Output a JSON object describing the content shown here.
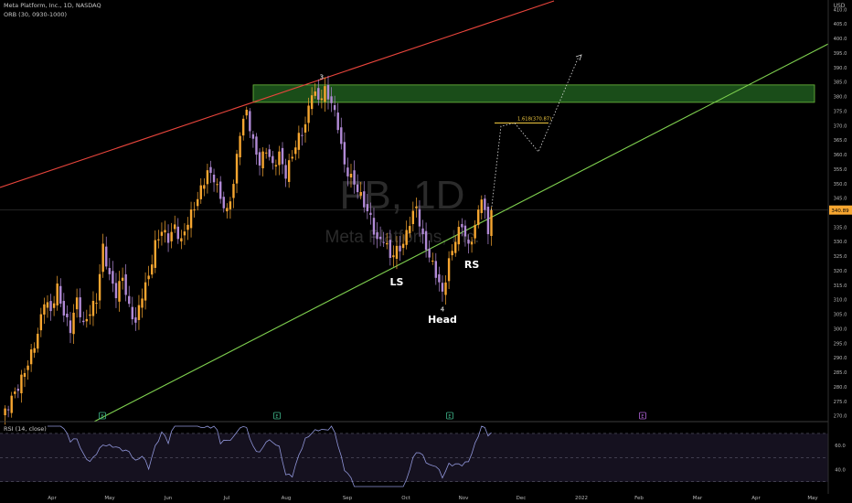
{
  "header": {
    "symbol_line": "Meta Platform, Inc., 1D, NASDAQ",
    "indicator_line": "ORB (30, 0930-1000)",
    "currency": "USD"
  },
  "watermark": {
    "ticker": "FB, 1D",
    "name": "Meta Platforms, Inc."
  },
  "colors": {
    "background": "#000000",
    "candle_up": "#f7a630",
    "candle_down": "#b18ad6",
    "resistance_line": "#e8453c",
    "support_line": "#7fd14f",
    "zone_fill": "#1f5a1d",
    "zone_stroke": "#6fbf3f",
    "projection": "#f0c840",
    "rsi_line": "#8f95d8",
    "axis_text": "#b8b8b8",
    "price_tag": "#f7a630"
  },
  "chart_data": [
    {
      "type": "candlestick",
      "title": "Meta Platform, Inc., 1D, NASDAQ",
      "ylabel": "USD",
      "ylim": [
        268,
        412
      ],
      "x_ticks": [
        "Apr",
        "May",
        "Jun",
        "Jul",
        "Aug",
        "Sep",
        "Oct",
        "Nov",
        "Dec",
        "2022",
        "Feb",
        "Mar",
        "Apr",
        "May"
      ],
      "y_ticks": [
        270,
        275,
        280,
        285,
        290,
        295,
        300,
        305,
        310,
        315,
        320,
        325,
        330,
        335,
        340,
        345,
        350,
        355,
        360,
        365,
        370,
        375,
        380,
        385,
        390,
        395,
        400,
        405,
        410
      ],
      "last_price_label": "340.89",
      "last_price": 340.89,
      "price_anchors": [
        [
          0,
          269
        ],
        [
          3,
          276
        ],
        [
          5,
          280
        ],
        [
          8,
          288
        ],
        [
          11,
          298
        ],
        [
          13,
          310
        ],
        [
          15,
          306
        ],
        [
          17,
          314
        ],
        [
          19,
          305
        ],
        [
          21,
          300
        ],
        [
          23,
          310
        ],
        [
          25,
          301
        ],
        [
          27,
          306
        ],
        [
          29,
          310
        ],
        [
          31,
          328
        ],
        [
          33,
          318
        ],
        [
          35,
          312
        ],
        [
          37,
          318
        ],
        [
          39,
          307
        ],
        [
          41,
          302
        ],
        [
          43,
          312
        ],
        [
          45,
          318
        ],
        [
          47,
          329
        ],
        [
          49,
          334
        ],
        [
          51,
          331
        ],
        [
          53,
          335
        ],
        [
          55,
          330
        ],
        [
          57,
          337
        ],
        [
          59,
          342
        ],
        [
          61,
          348
        ],
        [
          63,
          354
        ],
        [
          65,
          352
        ],
        [
          67,
          345
        ],
        [
          69,
          340
        ],
        [
          71,
          350
        ],
        [
          73,
          368
        ],
        [
          75,
          375
        ],
        [
          77,
          364
        ],
        [
          79,
          357
        ],
        [
          81,
          362
        ],
        [
          83,
          356
        ],
        [
          85,
          360
        ],
        [
          87,
          353
        ],
        [
          89,
          360
        ],
        [
          91,
          366
        ],
        [
          93,
          370
        ],
        [
          95,
          382
        ],
        [
          97,
          379
        ],
        [
          99,
          382
        ],
        [
          101,
          378
        ],
        [
          103,
          370
        ],
        [
          105,
          356
        ],
        [
          107,
          352
        ],
        [
          109,
          348
        ],
        [
          111,
          343
        ],
        [
          113,
          338
        ],
        [
          115,
          330
        ],
        [
          117,
          331
        ],
        [
          119,
          325
        ],
        [
          121,
          327
        ],
        [
          123,
          329
        ],
        [
          125,
          337
        ],
        [
          127,
          342
        ],
        [
          129,
          331
        ],
        [
          131,
          325
        ],
        [
          133,
          319
        ],
        [
          135,
          312
        ],
        [
          137,
          323
        ],
        [
          139,
          331
        ],
        [
          141,
          336
        ],
        [
          143,
          328
        ],
        [
          145,
          335
        ],
        [
          147,
          346
        ],
        [
          149,
          333
        ],
        [
          150,
          340.89
        ]
      ],
      "annotations": [
        {
          "text": "3",
          "x": 98,
          "y": 386
        },
        {
          "text": "LS",
          "x": 121,
          "y": 315
        },
        {
          "text": "4",
          "x": 135,
          "y": 306
        },
        {
          "text": "Head",
          "x": 135,
          "y": 302
        },
        {
          "text": "RS",
          "x": 144,
          "y": 321
        },
        {
          "text": "1.618(370.87)",
          "x": 158,
          "y": 371.8
        }
      ],
      "resistance_zone": [
        378,
        384
      ],
      "fib_target": 370.87
    },
    {
      "type": "line",
      "title": "RSI (14, close)",
      "y_ticks": [
        60.0,
        40.0
      ],
      "ylim": [
        26,
        76
      ],
      "levels": [
        70,
        50,
        30
      ]
    }
  ],
  "event_markers": [
    "E",
    "E",
    "E",
    "E"
  ]
}
